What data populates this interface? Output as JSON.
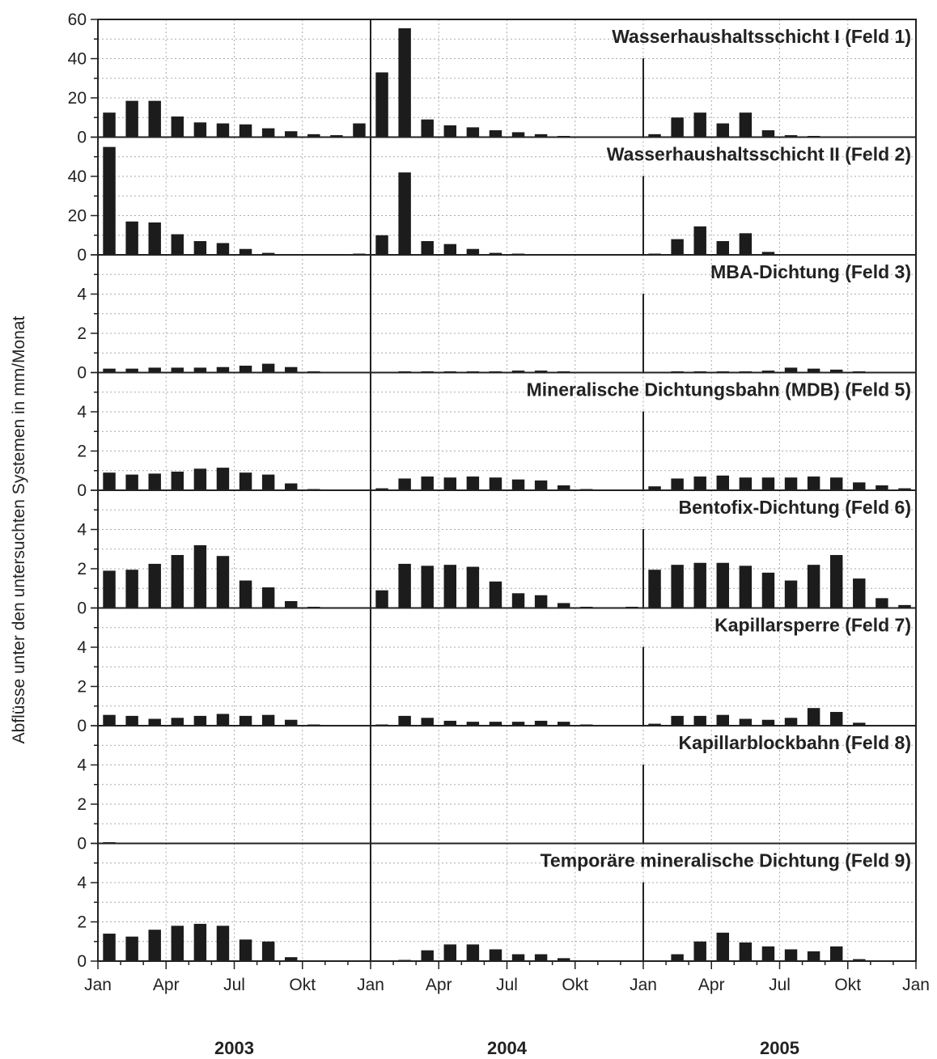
{
  "chart_data": {
    "type": "bar",
    "ylabel": "Abflüsse unter den untersuchten Systemen in mm/Monat",
    "x_tick_labels": [
      "Jan",
      "Apr",
      "Jul",
      "Okt",
      "Jan",
      "Apr",
      "Jul",
      "Okt",
      "Jan",
      "Apr",
      "Jul",
      "Okt",
      "Jan"
    ],
    "years": [
      "2003",
      "2004",
      "2005"
    ],
    "months_per_series": 36,
    "grid": true,
    "panels": [
      {
        "title": "Wasserhaushaltsschicht I (Feld 1)",
        "ylim": [
          0,
          60
        ],
        "yticks": [
          "0",
          "20",
          "40",
          "60"
        ],
        "values": [
          12.5,
          18.5,
          18.5,
          10.5,
          7.5,
          7.0,
          6.5,
          4.5,
          3.0,
          1.5,
          1.0,
          7.0,
          33.0,
          55.5,
          9.0,
          6.0,
          5.0,
          3.5,
          2.5,
          1.5,
          0.5,
          0,
          0,
          0,
          1.5,
          10.0,
          12.5,
          7.0,
          12.5,
          3.5,
          1.0,
          0.5,
          0,
          0,
          0,
          0
        ]
      },
      {
        "title": "Wasserhaushaltsschicht II (Feld 2)",
        "ylim": [
          0,
          60
        ],
        "yticks": [
          "0",
          "20",
          "40"
        ],
        "values": [
          55.0,
          17.0,
          16.5,
          10.5,
          7.0,
          6.0,
          3.0,
          1.0,
          0,
          0,
          0,
          0.5,
          10.0,
          42.0,
          7.0,
          5.5,
          3.0,
          1.0,
          0.5,
          0,
          0,
          0,
          0,
          0,
          0.5,
          8.0,
          14.5,
          7.0,
          11.0,
          1.5,
          0,
          0,
          0,
          0,
          0,
          0
        ]
      },
      {
        "title": "MBA-Dichtung (Feld 3)",
        "ylim": [
          0,
          6
        ],
        "yticks": [
          "0",
          "2",
          "4"
        ],
        "values": [
          0.2,
          0.2,
          0.25,
          0.25,
          0.25,
          0.28,
          0.35,
          0.45,
          0.28,
          0.05,
          0,
          0,
          0,
          0.05,
          0.05,
          0.05,
          0.05,
          0.05,
          0.1,
          0.1,
          0.05,
          0,
          0,
          0,
          0,
          0.05,
          0.05,
          0.05,
          0.05,
          0.1,
          0.25,
          0.2,
          0.15,
          0.05,
          0,
          0
        ]
      },
      {
        "title": "Mineralische Dichtungsbahn (MDB) (Feld 5)",
        "ylim": [
          0,
          6
        ],
        "yticks": [
          "0",
          "2",
          "4"
        ],
        "values": [
          0.9,
          0.8,
          0.85,
          0.95,
          1.1,
          1.15,
          0.9,
          0.8,
          0.35,
          0.05,
          0,
          0,
          0.1,
          0.6,
          0.7,
          0.65,
          0.7,
          0.65,
          0.55,
          0.5,
          0.25,
          0.05,
          0,
          0,
          0.2,
          0.6,
          0.7,
          0.75,
          0.65,
          0.65,
          0.65,
          0.7,
          0.65,
          0.4,
          0.25,
          0.1
        ]
      },
      {
        "title": "Bentofix-Dichtung (Feld 6)",
        "ylim": [
          0,
          6
        ],
        "yticks": [
          "0",
          "2",
          "4"
        ],
        "values": [
          1.9,
          1.95,
          2.25,
          2.7,
          3.2,
          2.65,
          1.4,
          1.05,
          0.35,
          0.05,
          0,
          0,
          0.9,
          2.25,
          2.15,
          2.2,
          2.1,
          1.35,
          0.75,
          0.65,
          0.25,
          0.05,
          0,
          0.05,
          1.95,
          2.2,
          2.3,
          2.3,
          2.15,
          1.8,
          1.4,
          2.2,
          2.7,
          1.5,
          0.5,
          0.15
        ]
      },
      {
        "title": "Kapillarsperre (Feld 7)",
        "ylim": [
          0,
          6
        ],
        "yticks": [
          "0",
          "2",
          "4"
        ],
        "values": [
          0.55,
          0.5,
          0.35,
          0.4,
          0.5,
          0.6,
          0.5,
          0.55,
          0.3,
          0.05,
          0,
          0,
          0.05,
          0.5,
          0.4,
          0.25,
          0.2,
          0.2,
          0.2,
          0.25,
          0.2,
          0.05,
          0,
          0,
          0.1,
          0.5,
          0.5,
          0.55,
          0.35,
          0.3,
          0.4,
          0.9,
          0.7,
          0.15,
          0,
          0
        ]
      },
      {
        "title": "Kapillarblockbahn (Feld 8)",
        "ylim": [
          0,
          6
        ],
        "yticks": [
          "0",
          "2",
          "4"
        ],
        "values": [
          0.05,
          0,
          0,
          0,
          0,
          0,
          0,
          0,
          0,
          0,
          0,
          0,
          0,
          0,
          0,
          0,
          0,
          0,
          0,
          0,
          0,
          0,
          0,
          0,
          0,
          0,
          0,
          0,
          0,
          0,
          0,
          0,
          0,
          0,
          0,
          0
        ]
      },
      {
        "title": "Temporäre mineralische Dichtung (Feld 9)",
        "ylim": [
          0,
          6
        ],
        "yticks": [
          "0",
          "2",
          "4"
        ],
        "values": [
          1.4,
          1.25,
          1.6,
          1.8,
          1.9,
          1.8,
          1.1,
          1.0,
          0.2,
          0,
          0,
          0,
          0,
          0.05,
          0.55,
          0.85,
          0.85,
          0.6,
          0.35,
          0.35,
          0.15,
          0,
          0,
          0,
          0,
          0.35,
          1.0,
          1.45,
          0.95,
          0.75,
          0.6,
          0.5,
          0.75,
          0.1,
          0,
          0
        ]
      }
    ]
  }
}
